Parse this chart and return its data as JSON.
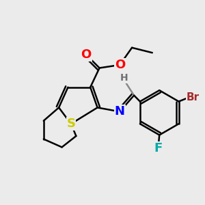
{
  "bg_color": "#ebebeb",
  "bond_color": "#000000",
  "bond_width": 1.8,
  "atom_colors": {
    "O": "#ff0000",
    "N": "#0000ff",
    "S": "#cccc00",
    "Br": "#a52a2a",
    "F": "#00aaaa",
    "C": "#000000",
    "H": "#707070"
  },
  "font_size_atom": 13,
  "font_size_label": 11
}
